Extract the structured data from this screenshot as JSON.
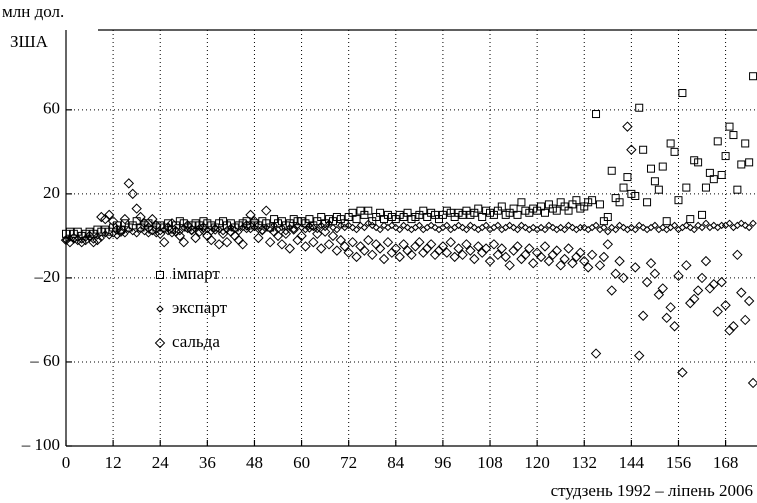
{
  "chart_data": {
    "type": "scatter",
    "y_label_lines": [
      "млн дол.",
      "ЗША"
    ],
    "x_label": "студзень 1992 – ліпень 2006",
    "xlim": [
      0,
      176
    ],
    "ylim": [
      -100,
      98
    ],
    "xticks": [
      0,
      12,
      24,
      36,
      48,
      60,
      72,
      84,
      96,
      108,
      120,
      132,
      144,
      156,
      168
    ],
    "yticks": [
      {
        "value": -100,
        "label": "– 100"
      },
      {
        "value": -60,
        "label": "– 60"
      },
      {
        "value": -20,
        "label": "–20"
      },
      20,
      60
    ],
    "grid": true,
    "legend": "left",
    "x": [
      0,
      1,
      2,
      3,
      4,
      5,
      6,
      7,
      8,
      9,
      10,
      11,
      12,
      13,
      14,
      15,
      16,
      17,
      18,
      19,
      20,
      21,
      22,
      23,
      24,
      25,
      26,
      27,
      28,
      29,
      30,
      31,
      32,
      33,
      34,
      35,
      36,
      37,
      38,
      39,
      40,
      41,
      42,
      43,
      44,
      45,
      46,
      47,
      48,
      49,
      50,
      51,
      52,
      53,
      54,
      55,
      56,
      57,
      58,
      59,
      60,
      61,
      62,
      63,
      64,
      65,
      66,
      67,
      68,
      69,
      70,
      71,
      72,
      73,
      74,
      75,
      76,
      77,
      78,
      79,
      80,
      81,
      82,
      83,
      84,
      85,
      86,
      87,
      88,
      89,
      90,
      91,
      92,
      93,
      94,
      95,
      96,
      97,
      98,
      99,
      100,
      101,
      102,
      103,
      104,
      105,
      106,
      107,
      108,
      109,
      110,
      111,
      112,
      113,
      114,
      115,
      116,
      117,
      118,
      119,
      120,
      121,
      122,
      123,
      124,
      125,
      126,
      127,
      128,
      129,
      130,
      131,
      132,
      133,
      134,
      135,
      136,
      137,
      138,
      139,
      140,
      141,
      142,
      143,
      144,
      145,
      146,
      147,
      148,
      149,
      150,
      151,
      152,
      153,
      154,
      155,
      156,
      157,
      158,
      159,
      160,
      161,
      162,
      163,
      164,
      165,
      166,
      167,
      168,
      169,
      170,
      171,
      172,
      173,
      174,
      175
    ],
    "series": [
      {
        "name": "імпарт",
        "color": "#000000",
        "marker": "square",
        "values": [
          1,
          2,
          1,
          2,
          0,
          1,
          2,
          1,
          3,
          2,
          3,
          2,
          4,
          5,
          3,
          6,
          4,
          5,
          7,
          4,
          5,
          6,
          3,
          4,
          5,
          4,
          6,
          3,
          5,
          7,
          6,
          4,
          5,
          6,
          5,
          7,
          6,
          5,
          4,
          6,
          7,
          5,
          6,
          4,
          5,
          6,
          7,
          5,
          6,
          5,
          7,
          6,
          4,
          8,
          6,
          7,
          5,
          6,
          8,
          7,
          7,
          6,
          8,
          5,
          7,
          9,
          6,
          8,
          7,
          9,
          8,
          6,
          9,
          11,
          8,
          12,
          10,
          12,
          7,
          9,
          11,
          8,
          10,
          9,
          8,
          10,
          9,
          11,
          8,
          9,
          10,
          12,
          9,
          11,
          10,
          8,
          10,
          12,
          11,
          9,
          11,
          10,
          12,
          10,
          11,
          13,
          9,
          12,
          11,
          10,
          12,
          14,
          10,
          11,
          13,
          10,
          16,
          12,
          11,
          13,
          12,
          14,
          11,
          15,
          13,
          12,
          16,
          14,
          12,
          15,
          17,
          13,
          14,
          16,
          17,
          58,
          15,
          7,
          9,
          31,
          18,
          16,
          23,
          28,
          20,
          19,
          61,
          41,
          16,
          32,
          26,
          22,
          33,
          7,
          44,
          40,
          17,
          68,
          23,
          8,
          36,
          35,
          10,
          23,
          30,
          27,
          45,
          29,
          38,
          52,
          48,
          22,
          34,
          44,
          35,
          76
        ]
      },
      {
        "name": "экспарт",
        "color": "#000000",
        "marker": "small-diamond",
        "values": [
          -2,
          -1,
          -2,
          -1,
          -2,
          -1,
          -1,
          -2,
          0,
          -1,
          1,
          0,
          1,
          0,
          2,
          1,
          3,
          2,
          1,
          3,
          2,
          1,
          2,
          1,
          2,
          3,
          2,
          1,
          3,
          2,
          4,
          3,
          2,
          3,
          4,
          2,
          3,
          2,
          4,
          3,
          2,
          3,
          4,
          3,
          2,
          4,
          3,
          3,
          4,
          3,
          2,
          4,
          3,
          5,
          3,
          4,
          2,
          4,
          3,
          5,
          4,
          3,
          5,
          4,
          3,
          5,
          4,
          6,
          4,
          3,
          5,
          4,
          5,
          4,
          3,
          5,
          4,
          6,
          5,
          4,
          3,
          5,
          4,
          5,
          4,
          3,
          5,
          4,
          3,
          4,
          5,
          3,
          4,
          5,
          4,
          3,
          4,
          5,
          3,
          4,
          5,
          4,
          3,
          5,
          4,
          3,
          4,
          5,
          3,
          4,
          5,
          3,
          4,
          5,
          4,
          3,
          5,
          4,
          3,
          4,
          3,
          4,
          3,
          5,
          4,
          3,
          4,
          3,
          5,
          4,
          3,
          4,
          4,
          3,
          4,
          5,
          3,
          4,
          2,
          4,
          3,
          5,
          4,
          3,
          4,
          3,
          5,
          4,
          3,
          4,
          5,
          3,
          4,
          3,
          4,
          5,
          3,
          4,
          5,
          4,
          3,
          5,
          4,
          6,
          4,
          5,
          4,
          5,
          5,
          6,
          4,
          5,
          6,
          5,
          4,
          6
        ]
      },
      {
        "name": "сальда",
        "color": "#000000",
        "marker": "diamond",
        "values": [
          -2,
          -3,
          -1,
          -2,
          -3,
          -2,
          0,
          -3,
          -2,
          9,
          8,
          10,
          7,
          3,
          2,
          8,
          25,
          20,
          13,
          9,
          6,
          4,
          8,
          5,
          1,
          -3,
          4,
          6,
          2,
          0,
          -3,
          5,
          3,
          -1,
          2,
          4,
          0,
          -2,
          3,
          -4,
          1,
          -3,
          2,
          0,
          -2,
          -4,
          5,
          10,
          7,
          -1,
          3,
          12,
          -3,
          2,
          0,
          -4,
          1,
          -6,
          3,
          -2,
          0,
          -5,
          4,
          -3,
          1,
          -6,
          2,
          -4,
          0,
          -7,
          -2,
          -5,
          -8,
          -3,
          -10,
          -5,
          -7,
          -2,
          -9,
          -4,
          -6,
          -11,
          -3,
          -8,
          -6,
          -10,
          -4,
          -7,
          -9,
          -5,
          -3,
          -8,
          -6,
          -4,
          -9,
          -7,
          -5,
          -8,
          -3,
          -10,
          -6,
          -9,
          -4,
          -7,
          -11,
          -5,
          -8,
          -6,
          -12,
          -4,
          -9,
          -6,
          -10,
          -14,
          -7,
          -5,
          -11,
          -9,
          -6,
          -13,
          -8,
          -10,
          -5,
          -12,
          -9,
          -7,
          -14,
          -11,
          -6,
          -13,
          -10,
          -8,
          -12,
          -15,
          -9,
          -56,
          -14,
          -10,
          -4,
          -26,
          -18,
          -12,
          -20,
          52,
          41,
          -15,
          -57,
          -38,
          -22,
          -13,
          -18,
          -28,
          -25,
          -39,
          -34,
          -43,
          -19,
          -65,
          -14,
          -32,
          -30,
          -26,
          -20,
          -12,
          -25,
          -23,
          -36,
          -22,
          -33,
          -45,
          -43,
          -9,
          -27,
          -40,
          -31,
          -70
        ]
      }
    ]
  }
}
